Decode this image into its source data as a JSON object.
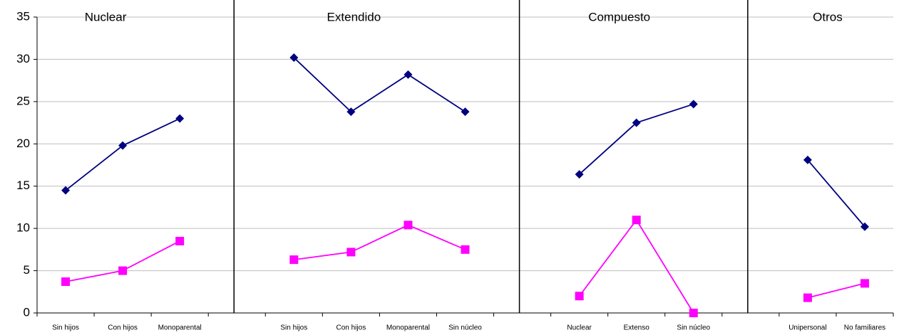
{
  "chart_data": {
    "type": "line",
    "groups": [
      "Nuclear",
      "Extendido",
      "Compuesto",
      "Otros"
    ],
    "categories": [
      "Sin hijos",
      "Con hijos",
      "Monoparental",
      null,
      "Sin hijos",
      "Con hijos",
      "Monoparental",
      "Sin núcleo",
      null,
      "Nuclear",
      "Extenso",
      "Sin núcleo",
      null,
      "Unipersonal",
      "No familiares"
    ],
    "series": [
      {
        "color": "#000080",
        "marker": "diamond",
        "values": [
          14.5,
          19.8,
          23,
          null,
          30.2,
          23.8,
          28.2,
          23.8,
          null,
          16.4,
          22.5,
          24.7,
          null,
          18.1,
          10.2
        ]
      },
      {
        "color": "#ff00ff",
        "marker": "square",
        "values": [
          3.7,
          5,
          8.5,
          null,
          6.3,
          7.2,
          10.4,
          7.5,
          null,
          2,
          11,
          0,
          null,
          1.8,
          3.5
        ]
      }
    ],
    "ylim": [
      0,
      35
    ],
    "yticks": [
      0,
      5,
      10,
      15,
      20,
      25,
      30,
      35
    ],
    "grid": true
  }
}
